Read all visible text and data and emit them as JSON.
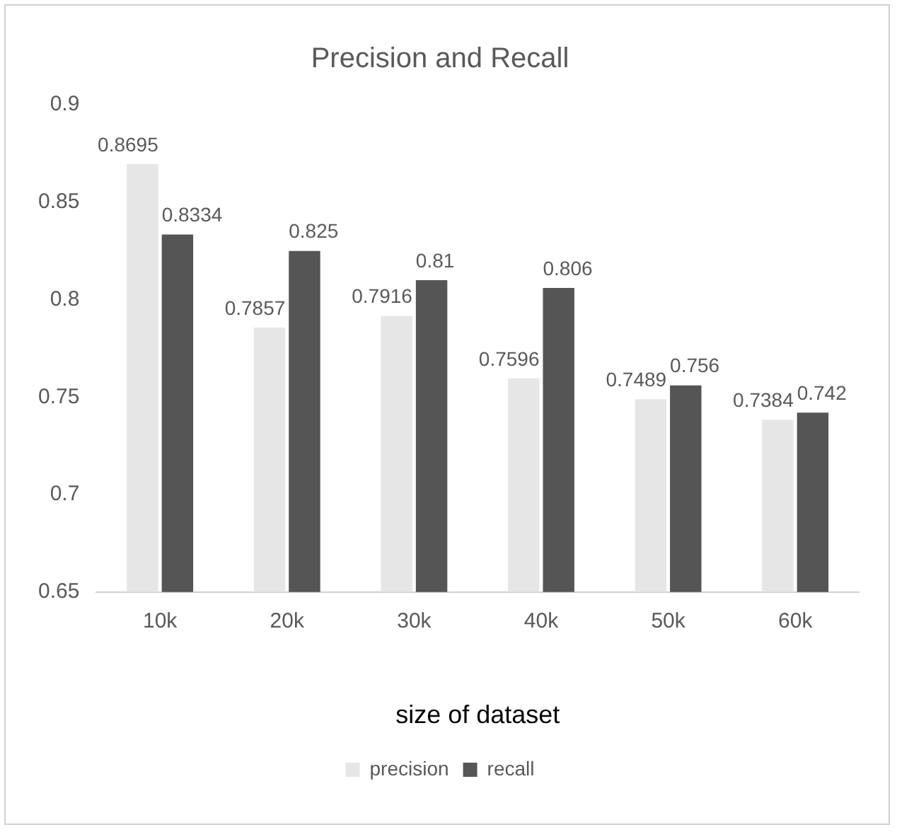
{
  "chart_data": {
    "type": "bar",
    "title": "Precision and Recall",
    "xlabel": "size of dataset",
    "categories": [
      "10k",
      "20k",
      "30k",
      "40k",
      "50k",
      "60k"
    ],
    "series": [
      {
        "name": "precision",
        "color": "#e6e6e6",
        "values": [
          0.8695,
          0.7857,
          0.7916,
          0.7596,
          0.7489,
          0.7384
        ]
      },
      {
        "name": "recall",
        "color": "#555555",
        "values": [
          0.8334,
          0.825,
          0.81,
          0.806,
          0.756,
          0.742
        ]
      }
    ],
    "ylim": [
      0.65,
      0.9
    ],
    "yticks": [
      0.65,
      0.7,
      0.75,
      0.8,
      0.85,
      0.9
    ],
    "grid": false,
    "legend": "bottom",
    "data_labels": true
  }
}
